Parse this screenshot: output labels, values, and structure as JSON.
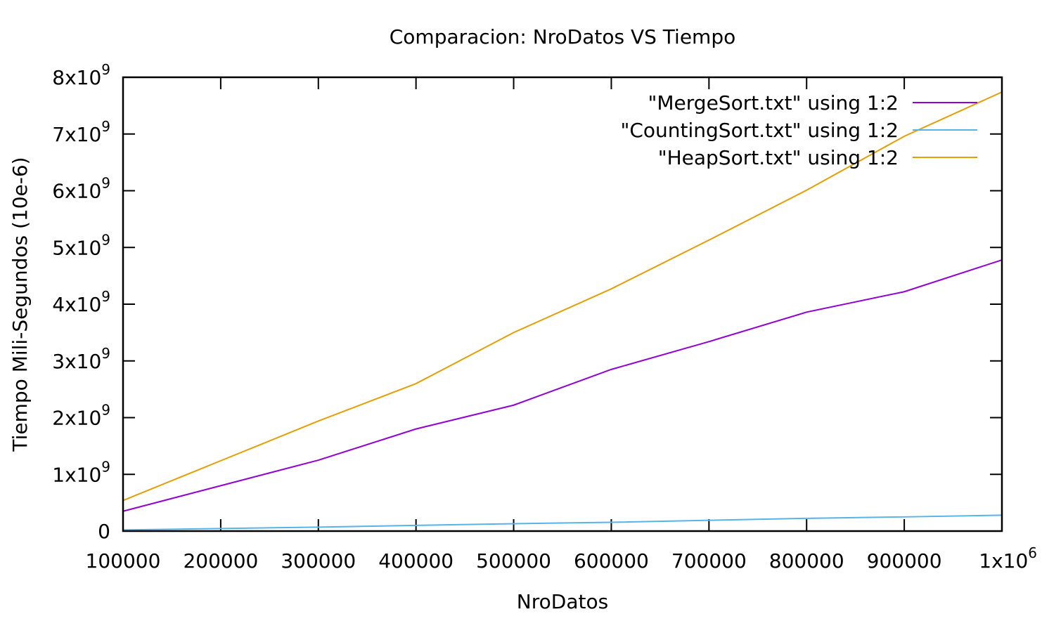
{
  "chart_data": {
    "type": "line",
    "title": "Comparacion: NroDatos VS Tiempo",
    "xlabel": "NroDatos",
    "ylabel": "Tiempo Mili-Segundos (10e-6)",
    "xlim": [
      100000,
      1000000
    ],
    "ylim": [
      0,
      8000000000
    ],
    "grid": false,
    "legend_position": "top-right",
    "x": [
      100000,
      200000,
      300000,
      400000,
      500000,
      600000,
      700000,
      800000,
      900000,
      1000000
    ],
    "x_ticks": [
      {
        "value": 100000,
        "base": "100000",
        "exp": ""
      },
      {
        "value": 200000,
        "base": "200000",
        "exp": ""
      },
      {
        "value": 300000,
        "base": "300000",
        "exp": ""
      },
      {
        "value": 400000,
        "base": "400000",
        "exp": ""
      },
      {
        "value": 500000,
        "base": "500000",
        "exp": ""
      },
      {
        "value": 600000,
        "base": "600000",
        "exp": ""
      },
      {
        "value": 700000,
        "base": "700000",
        "exp": ""
      },
      {
        "value": 800000,
        "base": "800000",
        "exp": ""
      },
      {
        "value": 900000,
        "base": "900000",
        "exp": ""
      },
      {
        "value": 1000000,
        "base": "1x10",
        "exp": "6"
      }
    ],
    "y_ticks": [
      {
        "value": 0,
        "base": "0",
        "exp": ""
      },
      {
        "value": 1000000000,
        "base": "1x10",
        "exp": "9"
      },
      {
        "value": 2000000000,
        "base": "2x10",
        "exp": "9"
      },
      {
        "value": 3000000000,
        "base": "3x10",
        "exp": "9"
      },
      {
        "value": 4000000000,
        "base": "4x10",
        "exp": "9"
      },
      {
        "value": 5000000000,
        "base": "5x10",
        "exp": "9"
      },
      {
        "value": 6000000000,
        "base": "6x10",
        "exp": "9"
      },
      {
        "value": 7000000000,
        "base": "7x10",
        "exp": "9"
      },
      {
        "value": 8000000000,
        "base": "8x10",
        "exp": "9"
      }
    ],
    "series": [
      {
        "name": "\"MergeSort.txt\" using 1:2",
        "color": "#9400d3",
        "values": [
          350000000,
          800000000,
          1250000000,
          1800000000,
          2220000000,
          2850000000,
          3340000000,
          3860000000,
          4220000000,
          4780000000
        ]
      },
      {
        "name": "\"CountingSort.txt\" using 1:2",
        "color": "#56b4e9",
        "values": [
          20000000,
          45000000,
          70000000,
          100000000,
          130000000,
          155000000,
          190000000,
          225000000,
          250000000,
          280000000
        ]
      },
      {
        "name": "\"HeapSort.txt\" using 1:2",
        "color": "#e69f00",
        "values": [
          540000000,
          1240000000,
          1940000000,
          2600000000,
          3500000000,
          4270000000,
          5130000000,
          6010000000,
          6960000000,
          7740000000
        ]
      }
    ]
  }
}
